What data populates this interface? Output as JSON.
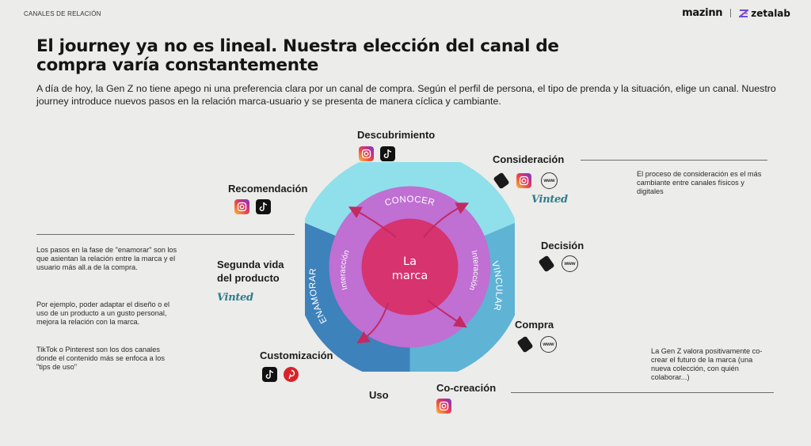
{
  "header": {
    "section_label": "CANALES DE RELACIÓN",
    "brand_left": "mazinn",
    "brand_right": "zetalab"
  },
  "title": "El journey ya no es lineal. Nuestra elección del canal de compra varía constantemente",
  "intro": "A día de hoy, la Gen Z no tiene apego ni una preferencia clara por un canal de compra. Según el perfil de persona, el tipo de prenda y la situación, elige un canal. Nuestro journey introduce nuevos pasos en la relación marca-usuario y se presenta de manera cíclica y cambiante.",
  "diagram": {
    "center_line1": "La",
    "center_line2": "marca",
    "ring_top": "CONOCER",
    "ring_right": "VINCULAR",
    "ring_left": "ENAMORAR",
    "inner_left": "Interacción",
    "inner_right": "Interacción",
    "colors": {
      "outer_conocer": "#8fe0ea",
      "outer_vincular": "#5fb3d5",
      "outer_enamorar": "#3e82bb",
      "middle": "#c06fd3",
      "center": "#d6336f",
      "arrows": "#c22a62"
    }
  },
  "stages": {
    "descubrimiento": {
      "label": "Descubrimiento",
      "icons": [
        "instagram-icon",
        "tiktok-icon"
      ]
    },
    "consideracion": {
      "label": "Consideración",
      "icons": [
        "price-tag-icon",
        "instagram-icon",
        "www-icon"
      ],
      "brand": "Vinted"
    },
    "recomendacion": {
      "label": "Recomendación",
      "icons": [
        "instagram-icon",
        "tiktok-icon"
      ]
    },
    "decision": {
      "label": "Decisión",
      "icons": [
        "price-tag-icon",
        "www-icon"
      ]
    },
    "segunda_vida": {
      "label": "Segunda vida del producto",
      "brand": "Vinted"
    },
    "compra": {
      "label": "Compra",
      "icons": [
        "price-tag-icon",
        "www-icon"
      ]
    },
    "customizacion": {
      "label": "Customización",
      "icons": [
        "tiktok-icon",
        "pinterest-icon"
      ]
    },
    "uso": {
      "label": "Uso"
    },
    "cocreacion": {
      "label": "Co-creación",
      "icons": [
        "instagram-icon"
      ]
    }
  },
  "icon_text": {
    "tiktok": "TikTok",
    "www": "www"
  },
  "notes": {
    "consideracion": "El proceso de consideración es el más cambiante entre canales físicos y digitales",
    "enamorar_1": "Los pasos en la fase de \"enamorar\" son los que asientan la relación entre la marca y el usuario más all.a de la compra.",
    "enamorar_2": "Por ejemplo, poder adaptar el diseño o el uso de un producto a un gusto personal, mejora la relación con la marca.",
    "enamorar_3": "TikTok o Pinterest son los dos canales donde el contenido más se enfoca a los \"tips de uso\"",
    "cocreacion": "La Gen Z valora positivamente co-crear el futuro de la marca (una nueva colección, con quién colaborar...)"
  }
}
